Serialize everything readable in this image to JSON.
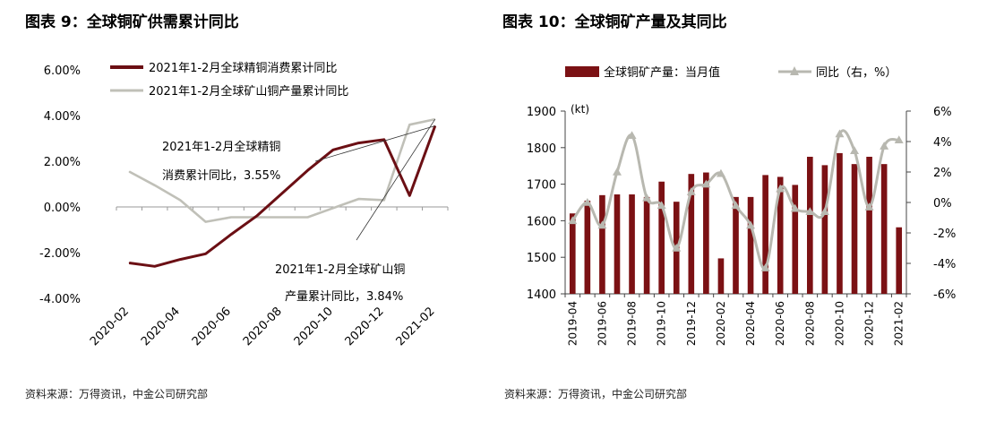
{
  "charts": {
    "left": {
      "title": "图表 9：全球铜矿供需累计同比",
      "source": "资料来源：万得资讯，中金公司研究部"
    },
    "right": {
      "title": "图表 10：全球铜矿产量及其同比",
      "source": "资料来源：万得资讯，中金公司研究部"
    }
  },
  "chart_data": [
    {
      "type": "line",
      "title": "图表 9：全球铜矿供需累计同比",
      "x": [
        "2020-02",
        "2020-03",
        "2020-04",
        "2020-05",
        "2020-06",
        "2020-07",
        "2020-08",
        "2020-09",
        "2020-10",
        "2020-11",
        "2020-12",
        "2021-01",
        "2021-02"
      ],
      "x_tick_labels": [
        "2020-02",
        "2020-04",
        "2020-06",
        "2020-08",
        "2020-10",
        "2020-12",
        "2021-02"
      ],
      "y_tick_labels": [
        "6.00%",
        "4.00%",
        "2.00%",
        "0.00%",
        "-2.00%",
        "-4.00%"
      ],
      "ylim": [
        -4,
        6
      ],
      "grid": false,
      "legend_position": "top",
      "series": [
        {
          "name": "2021年1-2月全球精铜消费累计同比",
          "color": "#6b0f14",
          "values": [
            -2.45,
            -2.6,
            -2.3,
            -2.05,
            -1.2,
            -0.4,
            0.6,
            1.6,
            2.5,
            2.8,
            2.95,
            0.5,
            3.55
          ]
        },
        {
          "name": "2021年1-2月全球矿山铜产量累计同比",
          "color": "#c0c0b8",
          "values": [
            1.55,
            0.95,
            0.3,
            -0.65,
            -0.45,
            -0.45,
            -0.45,
            -0.45,
            -0.05,
            0.35,
            0.3,
            3.6,
            3.84
          ]
        }
      ],
      "annotations": [
        {
          "lines": [
            "2021年1-2月全球精铜",
            "消费累计同比，3.55%"
          ],
          "target_series": 0
        },
        {
          "lines": [
            "2021年1-2月全球矿山铜",
            "产量累计同比，3.84%"
          ],
          "target_series": 1
        }
      ]
    },
    {
      "type": "bar",
      "title": "图表 10：全球铜矿产量及其同比",
      "unit_label": "(kt)",
      "categories": [
        "2019-04",
        "2019-05",
        "2019-06",
        "2019-07",
        "2019-08",
        "2019-09",
        "2019-10",
        "2019-11",
        "2019-12",
        "2020-01",
        "2020-02",
        "2020-03",
        "2020-04",
        "2020-05",
        "2020-06",
        "2020-07",
        "2020-08",
        "2020-09",
        "2020-10",
        "2020-11",
        "2020-12",
        "2021-01",
        "2021-02"
      ],
      "x_tick_labels": [
        "2019-04",
        "2019-06",
        "2019-08",
        "2019-10",
        "2019-12",
        "2020-02",
        "2020-04",
        "2020-06",
        "2020-08",
        "2020-10",
        "2020-12",
        "2021-02"
      ],
      "ylim": [
        1400,
        1900
      ],
      "y_tick_labels": [
        "1900",
        "1800",
        "1700",
        "1600",
        "1500",
        "1400"
      ],
      "y2lim": [
        -6,
        6
      ],
      "y2_tick_labels": [
        "6%",
        "4%",
        "2%",
        "0%",
        "-2%",
        "-4%",
        "-6%"
      ],
      "grid": false,
      "legend_position": "top",
      "series": [
        {
          "name": "全球铜矿产量：当月值",
          "type": "bar",
          "color": "#7b1114",
          "axis": "left",
          "values": [
            1620,
            1655,
            1670,
            1672,
            1672,
            1665,
            1707,
            1652,
            1728,
            1732,
            1497,
            1665,
            1665,
            1725,
            1720,
            1698,
            1775,
            1752,
            1785,
            1755,
            1775,
            1755,
            1582
          ]
        },
        {
          "name": "同比（右，%）",
          "type": "line",
          "color": "#b8b8b0",
          "axis": "right",
          "values": [
            -1.2,
            0.0,
            -1.5,
            2.0,
            4.4,
            0.3,
            -0.2,
            -3.0,
            0.7,
            1.2,
            1.9,
            -0.2,
            -1.5,
            -4.3,
            0.9,
            -0.4,
            -0.6,
            -0.6,
            4.5,
            3.4,
            -0.3,
            3.7,
            4.1
          ]
        }
      ]
    }
  ]
}
